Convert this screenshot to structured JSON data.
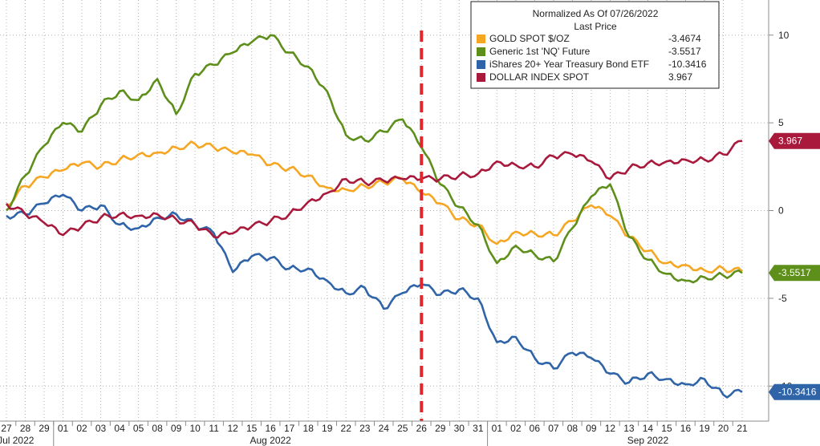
{
  "chart_data": {
    "type": "line",
    "title": "",
    "xlabel": "",
    "ylabel": "",
    "ylim": [
      -12,
      12
    ],
    "y_ticks": [
      10,
      5,
      0,
      -5
    ],
    "y_tick_partial": "-10",
    "grid": true,
    "legend_placement": "top-right",
    "legend": {
      "header": "Normalized As Of 07/26/2022",
      "subheader": "Last Price"
    },
    "x_day_labels": [
      "27",
      "28",
      "29",
      "01",
      "02",
      "03",
      "04",
      "05",
      "08",
      "09",
      "10",
      "11",
      "12",
      "15",
      "16",
      "17",
      "18",
      "19",
      "22",
      "23",
      "24",
      "25",
      "26",
      "29",
      "30",
      "31",
      "01",
      "02",
      "06",
      "07",
      "08",
      "09",
      "12",
      "13",
      "14",
      "15",
      "16",
      "19",
      "20",
      "21"
    ],
    "month_labels": [
      "Jul 2022",
      "Aug 2022",
      "Sep 2022"
    ],
    "month_label_index": [
      1,
      14,
      34
    ],
    "month_boundary_index": [
      3,
      26
    ],
    "marker_index": 22,
    "series": [
      {
        "name": "GOLD SPOT $/OZ",
        "last_value": "-3.4674",
        "color": "#f5a623",
        "values": [
          0.3,
          1.4,
          1.9,
          2.3,
          2.7,
          2.5,
          2.9,
          3.2,
          3.3,
          3.6,
          3.8,
          3.6,
          3.3,
          3.2,
          2.6,
          2.4,
          2.0,
          1.3,
          1.2,
          1.4,
          1.6,
          1.8,
          1.0,
          0.4,
          -0.5,
          -0.8,
          -1.9,
          -1.2,
          -1.3,
          -1.4,
          -0.6,
          0.3,
          -0.3,
          -1.5,
          -2.3,
          -3.0,
          -3.1,
          -3.4,
          -3.3,
          -3.4674
        ]
      },
      {
        "name": "Generic 1st 'NQ' Future",
        "last_value": "-3.5517",
        "color": "#5d8f1a",
        "values": [
          0.0,
          2.0,
          3.7,
          5.0,
          4.5,
          6.0,
          6.8,
          6.3,
          7.5,
          5.5,
          7.8,
          8.3,
          9.0,
          9.6,
          10.0,
          9.0,
          8.2,
          6.8,
          4.3,
          4.0,
          4.5,
          5.2,
          3.6,
          1.5,
          0.2,
          -0.8,
          -3.0,
          -2.0,
          -2.5,
          -2.9,
          -1.0,
          0.8,
          1.5,
          -1.5,
          -2.8,
          -3.6,
          -4.0,
          -3.8,
          -3.7,
          -3.5517
        ]
      },
      {
        "name": "iShares 20+ Year Treasury Bond ETF",
        "last_value": "-10.3416",
        "color": "#2f64a8",
        "values": [
          -0.3,
          -0.2,
          0.4,
          0.9,
          0.0,
          0.3,
          -0.8,
          -1.0,
          -0.4,
          -0.2,
          -0.8,
          -1.3,
          -3.5,
          -2.6,
          -2.7,
          -3.3,
          -3.3,
          -4.0,
          -4.7,
          -4.4,
          -5.6,
          -4.7,
          -4.2,
          -4.8,
          -4.5,
          -5.0,
          -7.5,
          -7.2,
          -8.4,
          -9.0,
          -8.1,
          -8.4,
          -9.3,
          -9.8,
          -9.3,
          -9.6,
          -9.9,
          -9.6,
          -10.5,
          -10.3416
        ]
      },
      {
        "name": "DOLLAR INDEX SPOT",
        "last_value": "3.967",
        "color": "#a8193c",
        "values": [
          0.4,
          -0.2,
          -0.7,
          -1.4,
          -0.9,
          -0.4,
          -0.2,
          -0.3,
          -0.2,
          -0.5,
          -0.8,
          -1.5,
          -1.3,
          -0.9,
          -0.6,
          -0.2,
          0.5,
          1.0,
          1.8,
          1.6,
          1.7,
          1.8,
          1.8,
          1.8,
          2.0,
          2.1,
          2.8,
          2.6,
          2.5,
          3.1,
          3.2,
          2.8,
          1.8,
          2.4,
          2.7,
          2.8,
          2.9,
          2.9,
          3.2,
          3.967
        ]
      }
    ]
  }
}
